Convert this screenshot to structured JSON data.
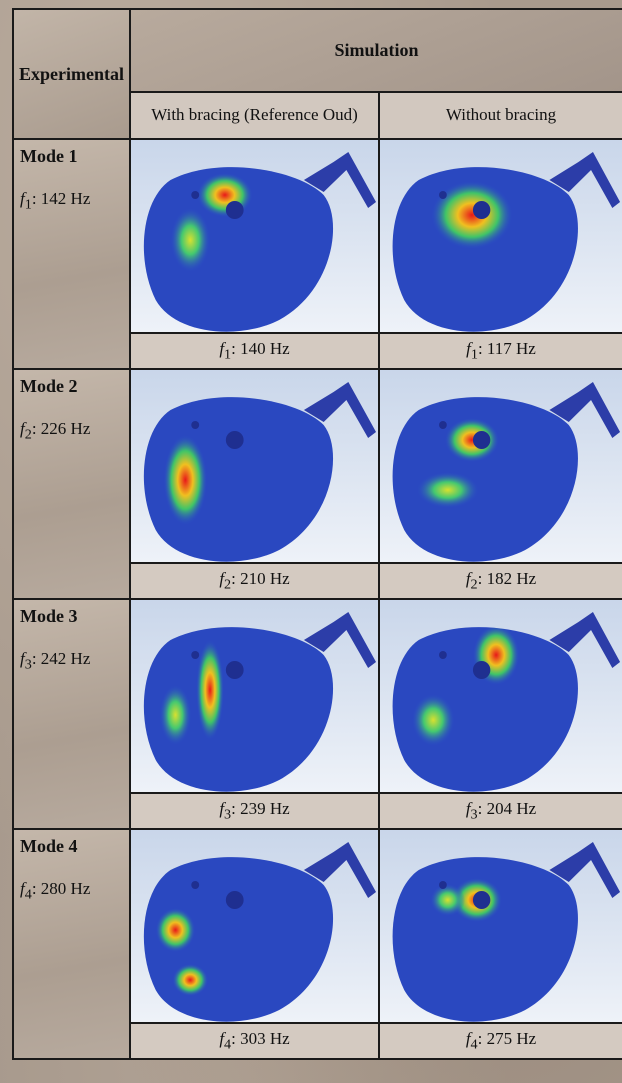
{
  "header": {
    "experimental": "Experimental",
    "simulation": "Simulation",
    "with_bracing": "With bracing (Reference Oud)",
    "without_bracing": "Without bracing"
  },
  "modes": [
    {
      "title": "Mode 1",
      "fsym": "f",
      "fsub": "1",
      "exp_val": ": 142 Hz",
      "with_val": ": 140 Hz",
      "without_val": ": 117 Hz"
    },
    {
      "title": "Mode 2",
      "fsym": "f",
      "fsub": "2",
      "exp_val": ": 226 Hz",
      "with_val": ": 210 Hz",
      "without_val": ": 182 Hz"
    },
    {
      "title": "Mode 3",
      "fsym": "f",
      "fsub": "3",
      "exp_val": ": 242 Hz",
      "with_val": ": 239 Hz",
      "without_val": ": 204 Hz"
    },
    {
      "title": "Mode 4",
      "fsym": "f",
      "fsub": "4",
      "exp_val": ": 280 Hz",
      "with_val": ": 303 Hz",
      "without_val": ": 275 Hz"
    }
  ]
}
